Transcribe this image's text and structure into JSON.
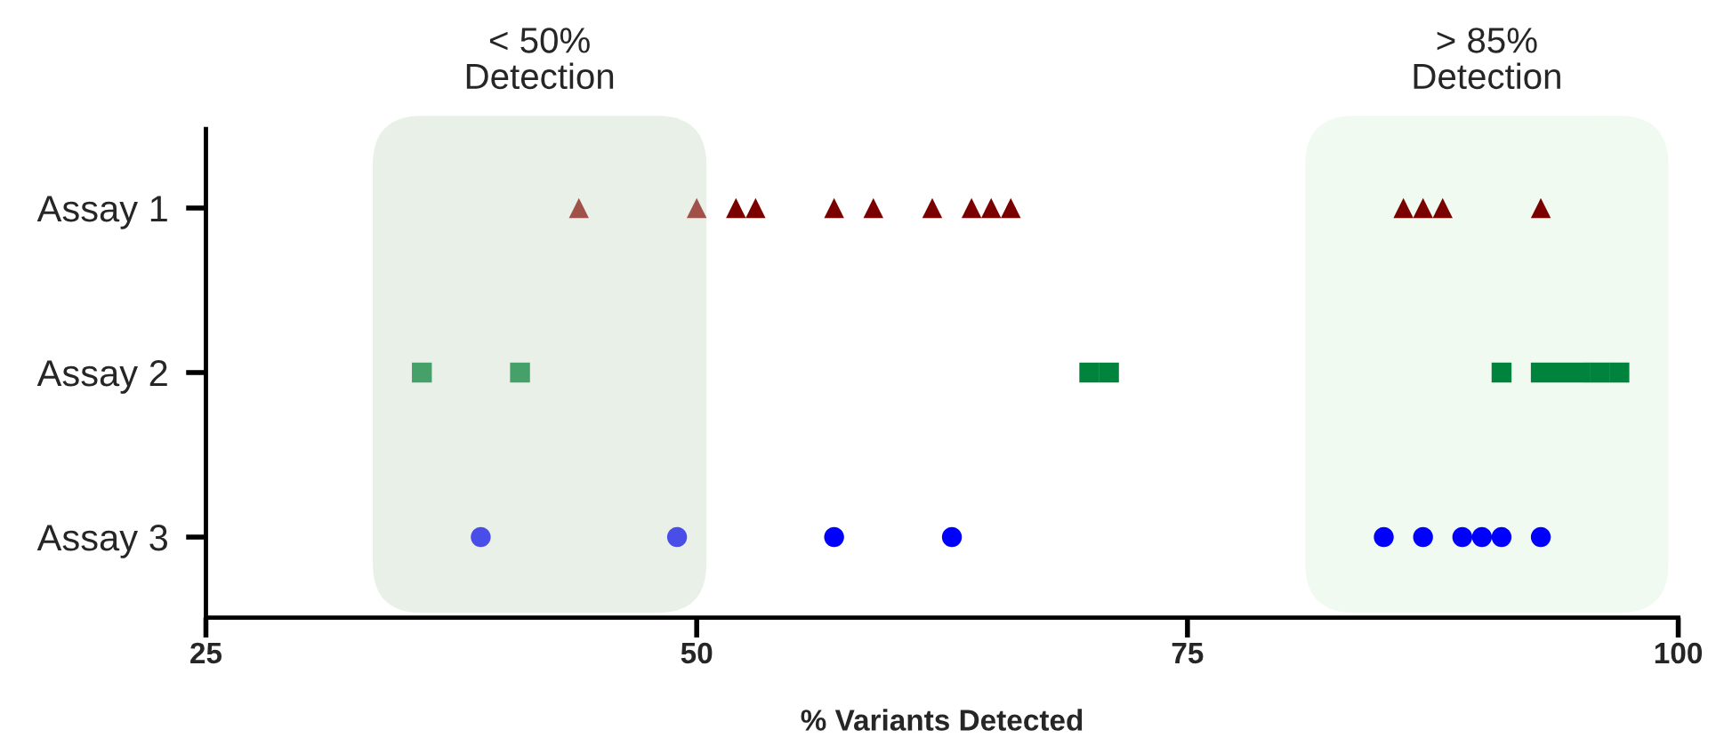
{
  "chart_data": {
    "type": "scatter",
    "orientation": "horizontal",
    "xlabel": "% Variants Detected",
    "categories": [
      "Assay 1",
      "Assay 2",
      "Assay 3"
    ],
    "xlim": [
      25,
      100
    ],
    "xticks": [
      25,
      50,
      75,
      100
    ],
    "grid": false,
    "legend": false,
    "series": [
      {
        "marker": "triangle",
        "x": [
          "Assay 1",
          "Assay 1",
          "Assay 1",
          "Assay 1",
          "Assay 1",
          "Assay 1",
          "Assay 1",
          "Assay 1",
          "Assay 1",
          "Assay 1",
          "Assay 1",
          "Assay 1",
          "Assay 1",
          "Assay 1"
        ],
        "values": [
          44,
          50,
          52,
          53,
          57,
          59,
          62,
          64,
          65,
          66,
          86,
          87,
          88,
          93
        ],
        "colors": [
          "#a0524a",
          "#a0524a",
          "#7b0000",
          "#7b0000",
          "#7b0000",
          "#7b0000",
          "#7b0000",
          "#7b0000",
          "#7b0000",
          "#7b0000",
          "#7b0000",
          "#7b0000",
          "#7b0000",
          "#7b0000"
        ]
      },
      {
        "marker": "square",
        "x": [
          "Assay 2",
          "Assay 2",
          "Assay 2",
          "Assay 2",
          "Assay 2",
          "Assay 2",
          "Assay 2",
          "Assay 2",
          "Assay 2",
          "Assay 2"
        ],
        "values": [
          36,
          41,
          70,
          71,
          91,
          93,
          94,
          95,
          96,
          97
        ],
        "colors": [
          "#45a06a",
          "#45a06a",
          "#00843d",
          "#00843d",
          "#00843d",
          "#00843d",
          "#00843d",
          "#00843d",
          "#00843d",
          "#00843d"
        ]
      },
      {
        "marker": "circle",
        "x": [
          "Assay 3",
          "Assay 3",
          "Assay 3",
          "Assay 3",
          "Assay 3",
          "Assay 3",
          "Assay 3",
          "Assay 3",
          "Assay 3",
          "Assay 3"
        ],
        "values": [
          39,
          49,
          57,
          63,
          85,
          87,
          89,
          90,
          91,
          93
        ],
        "colors": [
          "#4a4ee8",
          "#4a4ee8",
          "#0000ff",
          "#0000ff",
          "#0000ff",
          "#0000ff",
          "#0000ff",
          "#0000ff",
          "#0000ff",
          "#0000ff"
        ]
      }
    ],
    "bands": [
      {
        "axis": "x",
        "from": 33.5,
        "to": 50.5,
        "label": "< 50%\nDetection",
        "color": "#e8f0e8"
      },
      {
        "axis": "x",
        "from": 81,
        "to": 99.5,
        "label": "> 85%\nDetection",
        "color": "#f0faf0"
      }
    ]
  }
}
